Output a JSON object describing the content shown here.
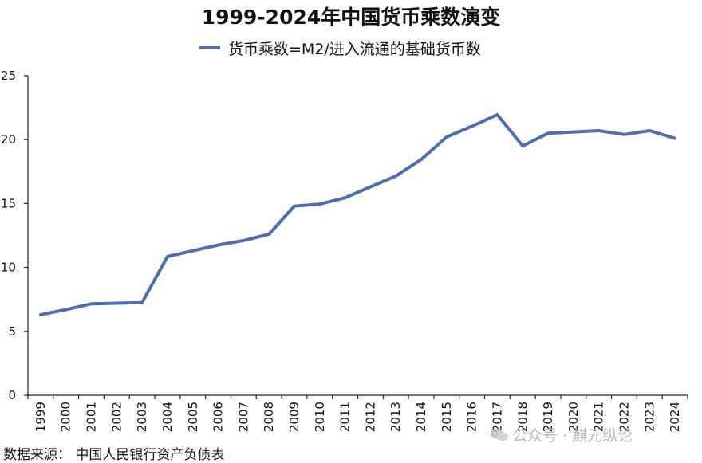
{
  "chart_data": {
    "type": "line",
    "title": "1999-2024年中国货币乘数演变",
    "xlabel": "",
    "ylabel": "",
    "x": [
      "1999",
      "2000",
      "2001",
      "2002",
      "2003",
      "2004",
      "2005",
      "2006",
      "2007",
      "2008",
      "2009",
      "2010",
      "2011",
      "2012",
      "2013",
      "2014",
      "2015",
      "2016",
      "2017",
      "2018",
      "2019",
      "2020",
      "2021",
      "2022",
      "2023",
      "2024"
    ],
    "series": [
      {
        "name": "货币乘数=M2/进入流通的基础货币数",
        "color": "#4f6fab",
        "values": [
          6.3,
          6.7,
          7.15,
          7.2,
          7.25,
          10.85,
          11.3,
          11.75,
          12.1,
          12.6,
          14.8,
          14.95,
          15.45,
          16.3,
          17.15,
          18.45,
          20.2,
          21.05,
          21.95,
          19.5,
          20.5,
          20.6,
          20.7,
          20.4,
          20.7,
          20.1
        ]
      }
    ],
    "ylim": [
      0,
      25
    ],
    "yticks": [
      0,
      5,
      10,
      15,
      20,
      25
    ],
    "grid": false,
    "legend_position": "top-center"
  },
  "source_note": "数据来源：  中国人民银行资产负债表",
  "watermark": {
    "text": "公众号 · 麒元纵论",
    "icon": "wechat-icon"
  }
}
